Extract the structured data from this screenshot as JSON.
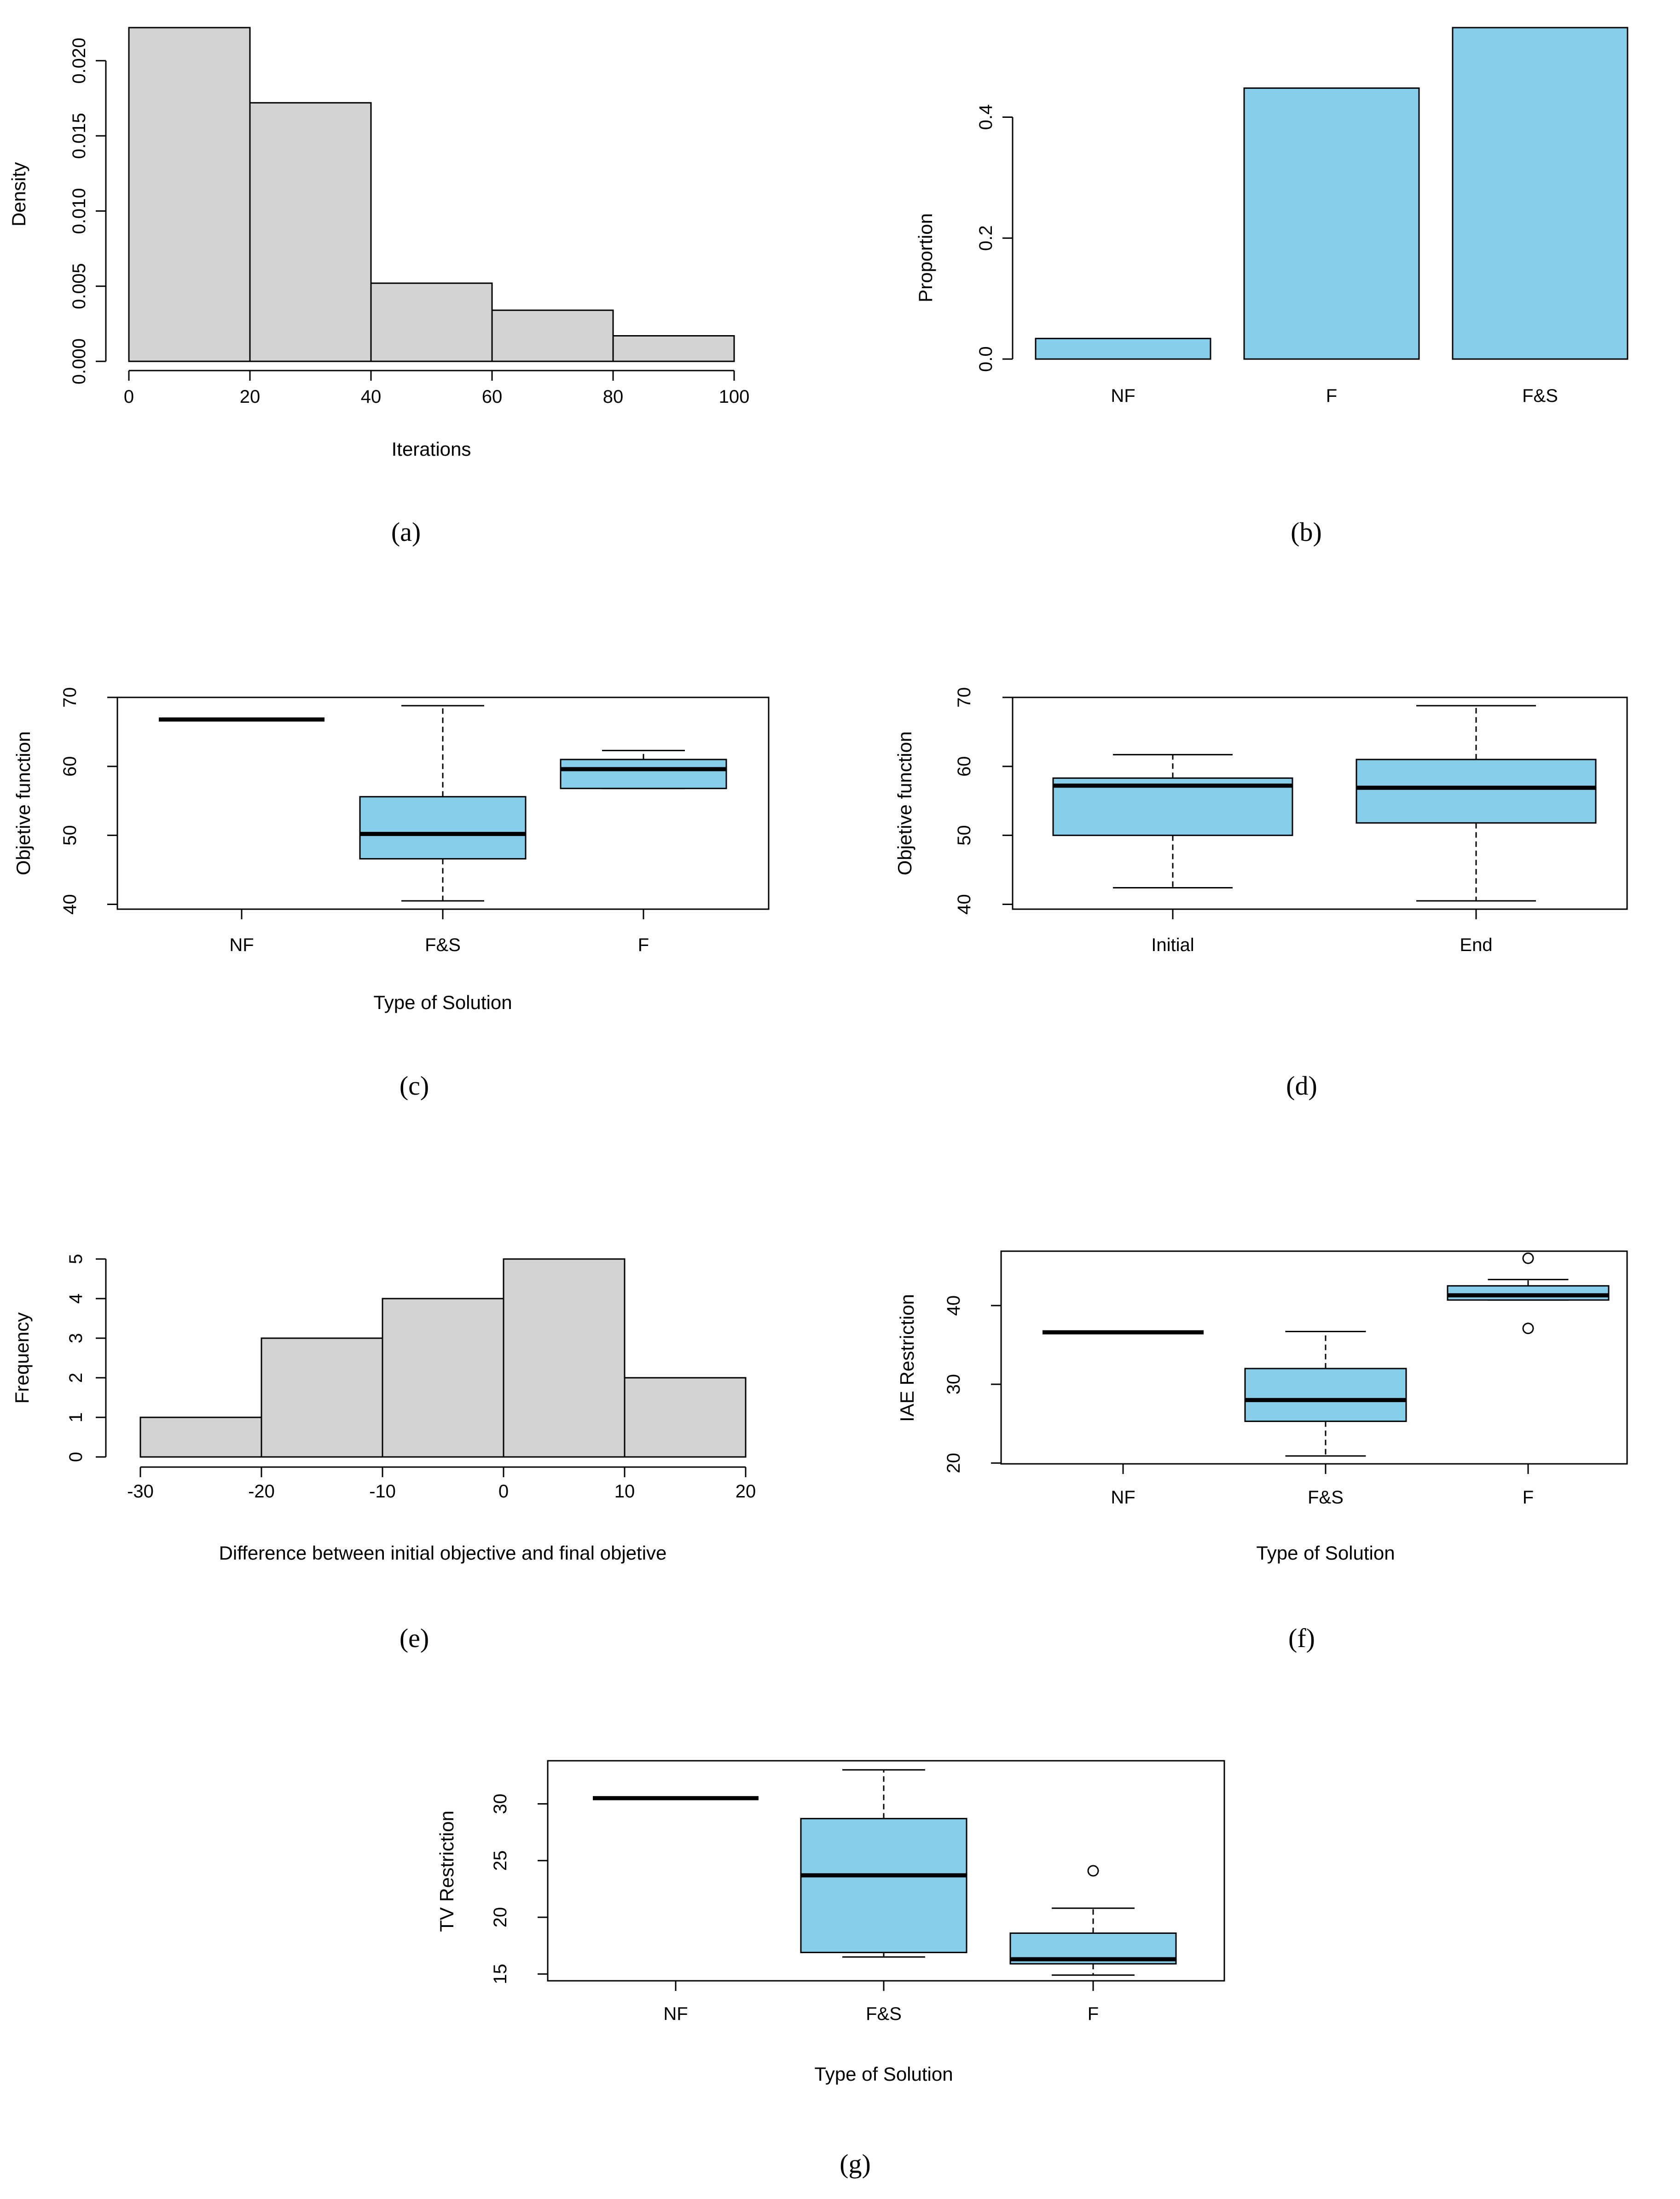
{
  "colors": {
    "hist_fill": "#d3d3d3",
    "box_fill": "#87ceeb",
    "stroke": "#000000"
  },
  "chart_data": [
    {
      "id": "a",
      "panel_label": "(a)",
      "type": "histogram",
      "xlabel": "Iterations",
      "ylabel": "Density",
      "bins": [
        [
          0,
          20
        ],
        [
          20,
          40
        ],
        [
          40,
          60
        ],
        [
          60,
          80
        ],
        [
          80,
          100
        ]
      ],
      "values": [
        0.0222,
        0.0172,
        0.0052,
        0.0034,
        0.0017
      ],
      "xticks": [
        0,
        20,
        40,
        60,
        80,
        100
      ],
      "xtick_labels": [
        "0",
        "20",
        "40",
        "60",
        "80",
        "100"
      ],
      "yticks": [
        0,
        0.005,
        0.01,
        0.015,
        0.02
      ],
      "ytick_labels": [
        "0.000",
        "0.005",
        "0.010",
        "0.015",
        "0.020"
      ],
      "xlim": [
        0,
        100
      ],
      "ylim": [
        0,
        0.0222
      ]
    },
    {
      "id": "b",
      "panel_label": "(b)",
      "type": "bar",
      "xlabel": "",
      "ylabel": "Proportion",
      "categories": [
        "NF",
        "F",
        "F&S"
      ],
      "values": [
        0.034,
        0.448,
        0.548
      ],
      "yticks": [
        0,
        0.2,
        0.4
      ],
      "ytick_labels": [
        "0.0",
        "0.2",
        "0.4"
      ],
      "ylim": [
        0,
        0.548
      ]
    },
    {
      "id": "c",
      "panel_label": "(c)",
      "type": "boxplot",
      "xlabel": "Type of Solution",
      "ylabel": "Objetive function",
      "categories": [
        "NF",
        "F&S",
        "F"
      ],
      "boxes": [
        {
          "min": 66.8,
          "q1": 66.8,
          "median": 66.8,
          "q3": 66.8,
          "max": 66.8,
          "outliers": []
        },
        {
          "min": 40.5,
          "q1": 46.6,
          "median": 50.2,
          "q3": 55.6,
          "max": 68.8,
          "outliers": []
        },
        {
          "min": 56.8,
          "q1": 56.8,
          "median": 59.6,
          "q3": 61.0,
          "max": 62.3,
          "outliers": []
        }
      ],
      "yticks": [
        40,
        50,
        60,
        70
      ],
      "ytick_labels": [
        "40",
        "50",
        "60",
        "70"
      ],
      "ylim": [
        39.3,
        70.0
      ]
    },
    {
      "id": "d",
      "panel_label": "(d)",
      "type": "boxplot",
      "xlabel": "",
      "ylabel": "Objetive function",
      "categories": [
        "Initial",
        "End"
      ],
      "boxes": [
        {
          "min": 42.4,
          "q1": 50.0,
          "median": 57.2,
          "q3": 58.3,
          "max": 61.7,
          "outliers": []
        },
        {
          "min": 40.5,
          "q1": 51.8,
          "median": 56.9,
          "q3": 61.0,
          "max": 68.8,
          "outliers": []
        }
      ],
      "yticks": [
        40,
        50,
        60,
        70
      ],
      "ytick_labels": [
        "40",
        "50",
        "60",
        "70"
      ],
      "ylim": [
        39.3,
        70.0
      ]
    },
    {
      "id": "e",
      "panel_label": "(e)",
      "type": "histogram",
      "xlabel": "Difference between initial objective and final objetive",
      "ylabel": "Frequency",
      "bins": [
        [
          -30,
          -20
        ],
        [
          -20,
          -10
        ],
        [
          -10,
          0
        ],
        [
          0,
          10
        ],
        [
          10,
          20
        ]
      ],
      "values": [
        1,
        3,
        4,
        5,
        2
      ],
      "xticks": [
        -30,
        -20,
        -10,
        0,
        10,
        20
      ],
      "xtick_labels": [
        "-30",
        "-20",
        "-10",
        "0",
        "10",
        "20"
      ],
      "yticks": [
        0,
        1,
        2,
        3,
        4,
        5
      ],
      "ytick_labels": [
        "0",
        "1",
        "2",
        "3",
        "4",
        "5"
      ],
      "xlim": [
        -30,
        20
      ],
      "ylim": [
        0,
        5
      ]
    },
    {
      "id": "f",
      "panel_label": "(f)",
      "type": "boxplot",
      "xlabel": "Type of Solution",
      "ylabel": "IAE Restriction",
      "categories": [
        "NF",
        "F&S",
        "F"
      ],
      "boxes": [
        {
          "min": 36.6,
          "q1": 36.6,
          "median": 36.6,
          "q3": 36.6,
          "max": 36.6,
          "outliers": []
        },
        {
          "min": 20.9,
          "q1": 25.3,
          "median": 28.0,
          "q3": 32.0,
          "max": 36.7,
          "outliers": []
        },
        {
          "min": 40.7,
          "q1": 40.7,
          "median": 41.3,
          "q3": 42.5,
          "max": 43.3,
          "outliers": [
            46.0,
            37.1
          ]
        }
      ],
      "yticks": [
        20,
        30,
        40
      ],
      "ytick_labels": [
        "20",
        "30",
        "40"
      ],
      "ylim": [
        19.9,
        46.9
      ]
    },
    {
      "id": "g",
      "panel_label": "(g)",
      "type": "boxplot",
      "xlabel": "Type of Solution",
      "ylabel": "TV Restriction",
      "categories": [
        "NF",
        "F&S",
        "F"
      ],
      "boxes": [
        {
          "min": 30.5,
          "q1": 30.5,
          "median": 30.5,
          "q3": 30.5,
          "max": 30.5,
          "outliers": []
        },
        {
          "min": 16.5,
          "q1": 16.9,
          "median": 23.7,
          "q3": 28.7,
          "max": 33.0,
          "outliers": []
        },
        {
          "min": 14.9,
          "q1": 15.9,
          "median": 16.3,
          "q3": 18.6,
          "max": 20.8,
          "outliers": [
            24.1
          ]
        }
      ],
      "yticks": [
        15,
        20,
        25,
        30
      ],
      "ytick_labels": [
        "15",
        "20",
        "25",
        "30"
      ],
      "ylim": [
        14.4,
        33.8
      ]
    }
  ]
}
